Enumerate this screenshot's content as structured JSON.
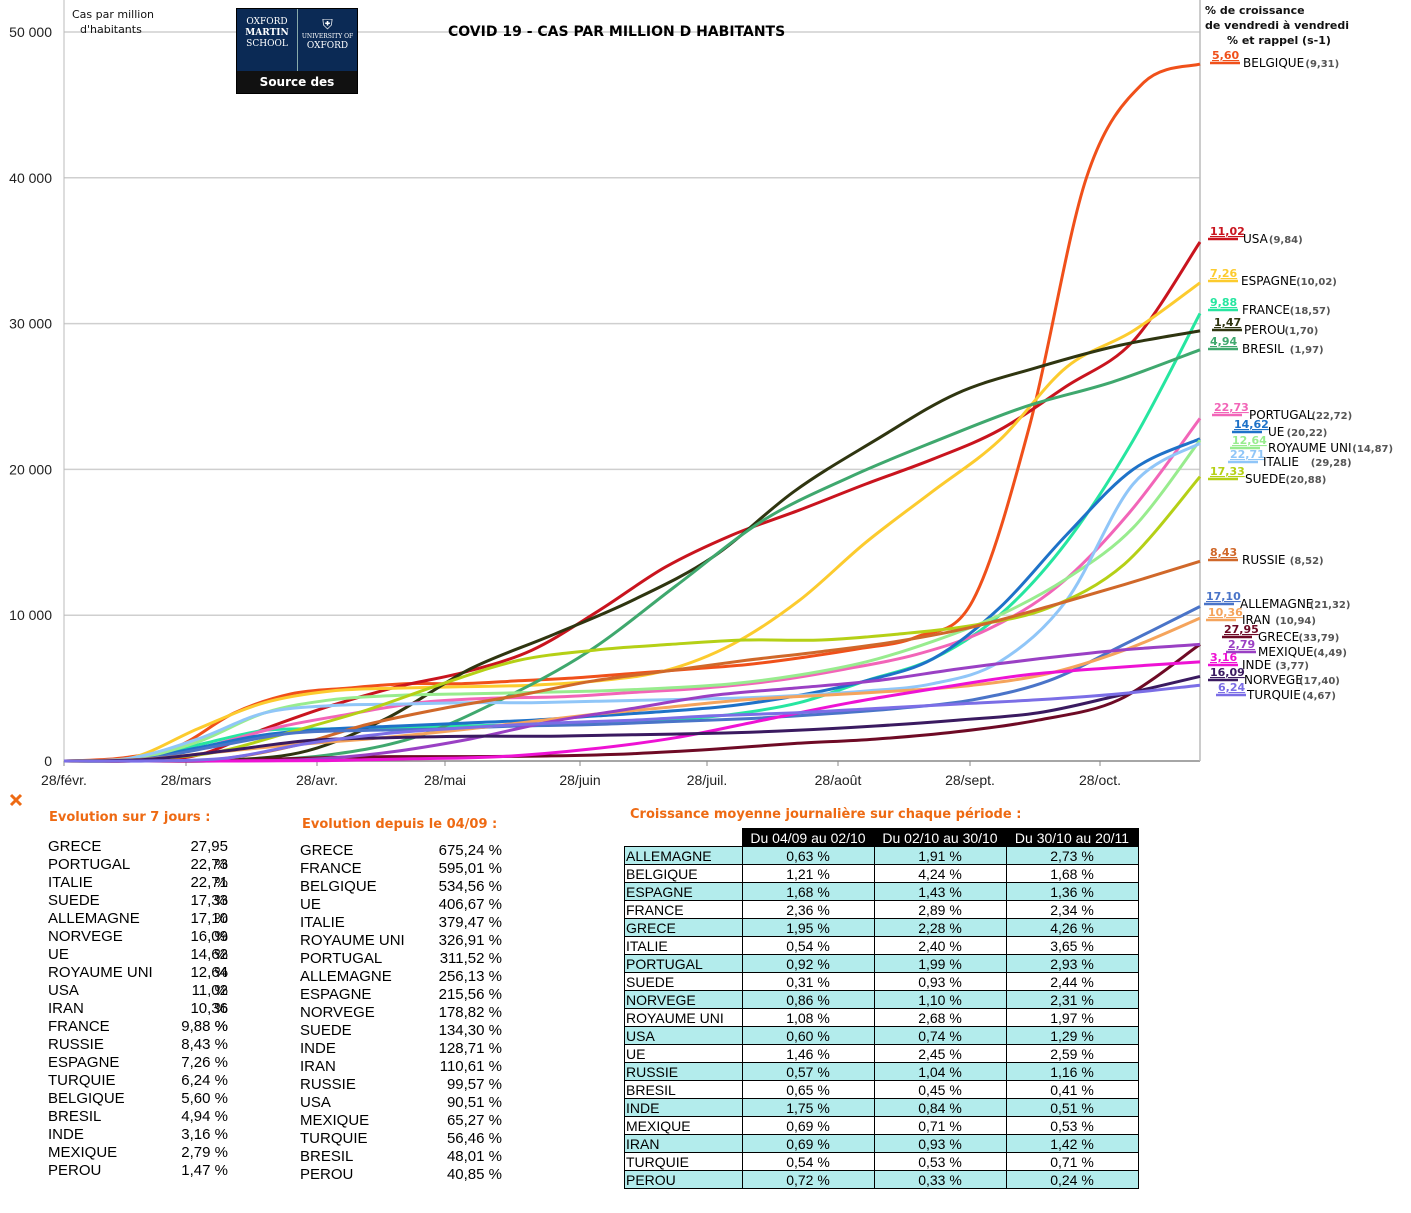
{
  "chart_data": {
    "type": "line",
    "title": "COVID 19 - CAS PAR MILLION D HABITANTS",
    "ylabel": "Cas par million d'habitants",
    "ylim": [
      0,
      50000
    ],
    "yticks": [
      "0",
      "10 000",
      "20 000",
      "30 000",
      "40 000",
      "50 000"
    ],
    "xticks": [
      "28/févr.",
      "28/mars",
      "28/avr.",
      "28/mai",
      "28/juin",
      "28/juil.",
      "28/août",
      "28/sept.",
      "28/oct."
    ],
    "legend_header": [
      "% de croissance",
      "de vendredi à vendredi",
      "% et rappel (s-1)"
    ],
    "series": [
      {
        "name": "BELGIQUE",
        "growth": "5,60",
        "prev": "(9,31)",
        "color": "#f0501a",
        "values": [
          0,
          200,
          1000,
          3300,
          4600,
          5000,
          5300,
          5300,
          5500,
          5700,
          6000,
          6300,
          6600,
          7100,
          7700,
          8500,
          11000,
          23000,
          40000,
          46500,
          47800
        ]
      },
      {
        "name": "USA",
        "growth": "11,02",
        "prev": "(9,84)",
        "color": "#c9141e",
        "values": [
          0,
          0,
          400,
          2200,
          3800,
          5100,
          6100,
          7600,
          10300,
          13300,
          15500,
          17200,
          19000,
          20700,
          22700,
          25700,
          28800,
          35600
        ]
      },
      {
        "name": "ESPAGNE",
        "growth": "7,26",
        "prev": "(10,02)",
        "color": "#fccb2e",
        "values": [
          0,
          200,
          2200,
          4000,
          4800,
          5000,
          5100,
          5200,
          5500,
          6200,
          8000,
          11000,
          15000,
          18500,
          22000,
          27000,
          29500,
          32800
        ]
      },
      {
        "name": "FRANCE",
        "growth": "9,88",
        "prev": "(18,57)",
        "color": "#26e6a0",
        "values": [
          0,
          150,
          1100,
          2100,
          2200,
          2300,
          2400,
          2500,
          2600,
          2800,
          3200,
          4000,
          5500,
          7000,
          10000,
          15000,
          22000,
          30700
        ]
      },
      {
        "name": "PEROU",
        "growth": "1,47",
        "prev": "(1,70)",
        "color": "#2f3510",
        "values": [
          0,
          0,
          50,
          700,
          3000,
          6300,
          8600,
          11000,
          14000,
          18500,
          22000,
          25200,
          27000,
          28500,
          29500
        ]
      },
      {
        "name": "BRESIL",
        "growth": "4,94",
        "prev": "(1,97)",
        "color": "#3fa86e",
        "values": [
          0,
          0,
          30,
          400,
          1600,
          4200,
          7500,
          12000,
          16500,
          19500,
          22000,
          24300,
          26000,
          28200
        ]
      },
      {
        "name": "PORTUGAL",
        "growth": "22,73",
        "prev": "(22,72)",
        "color": "#f265b8",
        "values": [
          0,
          100,
          1000,
          2300,
          3200,
          4000,
          4300,
          4400,
          4700,
          5000,
          5500,
          6300,
          7300,
          9000,
          12000,
          17000,
          23500
        ]
      },
      {
        "name": "UE",
        "growth": "14,62",
        "prev": "(20,22)",
        "color": "#1e72c8",
        "values": [
          0,
          100,
          900,
          1800,
          2200,
          2400,
          2600,
          2800,
          3100,
          3400,
          3800,
          4500,
          5500,
          7000,
          10500,
          15500,
          20000,
          22100
        ]
      },
      {
        "name": "ROYAUME UNI",
        "growth": "12,64",
        "prev": "(14,87)",
        "color": "#98ec8e",
        "values": [
          0,
          100,
          1300,
          3300,
          4200,
          4500,
          4600,
          4700,
          4800,
          5000,
          5300,
          5900,
          6800,
          8200,
          10000,
          12500,
          16000,
          22000
        ]
      },
      {
        "name": "ITALIE",
        "growth": "22,71",
        "prev": "(29,28)",
        "color": "#90c6f8",
        "values": [
          0,
          200,
          1500,
          3300,
          3800,
          3900,
          4000,
          4000,
          4100,
          4200,
          4300,
          4500,
          4800,
          5300,
          6800,
          11000,
          19000,
          21800
        ]
      },
      {
        "name": "SUEDE",
        "growth": "17,33",
        "prev": "(20,88)",
        "color": "#b5d016",
        "values": [
          0,
          100,
          600,
          2000,
          3500,
          5300,
          6900,
          7600,
          8000,
          8300,
          8300,
          8700,
          9300,
          10500,
          13500,
          19500
        ]
      },
      {
        "name": "RUSSIE",
        "growth": "8,43",
        "prev": "(8,52)",
        "color": "#d0682a",
        "values": [
          0,
          0,
          100,
          1000,
          2500,
          3600,
          4500,
          5500,
          6200,
          6900,
          7500,
          8200,
          9200,
          10600,
          12100,
          13700
        ]
      },
      {
        "name": "ALLEMAGNE",
        "growth": "17,10",
        "prev": "(21,32)",
        "color": "#4a74c8",
        "values": [
          0,
          100,
          1000,
          1900,
          2100,
          2200,
          2400,
          2500,
          2700,
          2900,
          3200,
          3600,
          4200,
          5500,
          8000,
          10600
        ]
      },
      {
        "name": "IRAN",
        "growth": "10,36",
        "prev": "(10,94)",
        "color": "#f5a45c",
        "values": [
          0,
          100,
          600,
          1100,
          1500,
          2000,
          2600,
          3200,
          3700,
          4200,
          4500,
          4800,
          5200,
          6000,
          7600,
          9800
        ]
      },
      {
        "name": "GRECE",
        "growth": "27,95",
        "prev": "(33,79)",
        "color": "#6e0a25",
        "values": [
          0,
          0,
          20,
          200,
          300,
          300,
          350,
          500,
          800,
          1200,
          1500,
          2000,
          2800,
          4200,
          8000
        ]
      },
      {
        "name": "MEXIQUE",
        "growth": "2,79",
        "prev": "(4,49)",
        "color": "#9a40c4",
        "values": [
          0,
          0,
          10,
          100,
          600,
          1500,
          2700,
          3600,
          4500,
          5000,
          5500,
          6300,
          7000,
          7600,
          8000
        ]
      },
      {
        "name": "INDE",
        "growth": "3,16",
        "prev": "(3,77)",
        "color": "#ee12d4",
        "values": [
          0,
          0,
          0,
          30,
          150,
          300,
          800,
          1600,
          2800,
          4000,
          5000,
          5900,
          6400,
          6800
        ]
      },
      {
        "name": "NORVEGE",
        "growth": "16,09",
        "prev": "(17,40)",
        "color": "#3a1a60",
        "values": [
          0,
          100,
          700,
          1400,
          1600,
          1700,
          1700,
          1800,
          1900,
          2100,
          2400,
          2800,
          3300,
          4500,
          5800
        ]
      },
      {
        "name": "TURQUIE",
        "growth": "6,24",
        "prev": "(4,67)",
        "color": "#7b6ee6",
        "values": [
          0,
          0,
          200,
          1200,
          1900,
          2300,
          2600,
          2800,
          3100,
          3300,
          3600,
          3900,
          4200,
          4600,
          5200
        ]
      }
    ]
  },
  "logo": {
    "line1": "OXFORD",
    "line2": "MARTIN",
    "line3": "SCHOOL",
    "line4": "UNIVERSITY OF",
    "line5": "OXFORD",
    "caption": "Source des données"
  },
  "sections": {
    "weekly_title": "Evolution sur 7 jours :",
    "since_title": "Evolution depuis le 04/09 :",
    "daily_title": "Croissance moyenne journalière sur chaque période :"
  },
  "weekly": [
    {
      "name": "GRECE",
      "value": "27,95 %"
    },
    {
      "name": "PORTUGAL",
      "value": "22,73 %"
    },
    {
      "name": "ITALIE",
      "value": "22,71 %"
    },
    {
      "name": "SUEDE",
      "value": "17,33 %"
    },
    {
      "name": "ALLEMAGNE",
      "value": "17,10 %"
    },
    {
      "name": "NORVEGE",
      "value": "16,09 %"
    },
    {
      "name": "UE",
      "value": "14,62 %"
    },
    {
      "name": "ROYAUME UNI",
      "value": "12,64 %"
    },
    {
      "name": "USA",
      "value": "11,02 %"
    },
    {
      "name": "IRAN",
      "value": "10,36 %"
    },
    {
      "name": "FRANCE",
      "value": "9,88 %"
    },
    {
      "name": "RUSSIE",
      "value": "8,43 %"
    },
    {
      "name": "ESPAGNE",
      "value": "7,26 %"
    },
    {
      "name": "TURQUIE",
      "value": "6,24 %"
    },
    {
      "name": "BELGIQUE",
      "value": "5,60 %"
    },
    {
      "name": "BRESIL",
      "value": "4,94 %"
    },
    {
      "name": "INDE",
      "value": "3,16 %"
    },
    {
      "name": "MEXIQUE",
      "value": "2,79 %"
    },
    {
      "name": "PEROU",
      "value": "1,47 %"
    }
  ],
  "since": [
    {
      "name": "GRECE",
      "value": "675,24 %"
    },
    {
      "name": "FRANCE",
      "value": "595,01 %"
    },
    {
      "name": "BELGIQUE",
      "value": "534,56 %"
    },
    {
      "name": "UE",
      "value": "406,67 %"
    },
    {
      "name": "ITALIE",
      "value": "379,47 %"
    },
    {
      "name": "ROYAUME UNI",
      "value": "326,91 %"
    },
    {
      "name": "PORTUGAL",
      "value": "311,52 %"
    },
    {
      "name": "ALLEMAGNE",
      "value": "256,13 %"
    },
    {
      "name": "ESPAGNE",
      "value": "215,56 %"
    },
    {
      "name": "NORVEGE",
      "value": "178,82 %"
    },
    {
      "name": "SUEDE",
      "value": "134,30 %"
    },
    {
      "name": "INDE",
      "value": "128,71 %"
    },
    {
      "name": "IRAN",
      "value": "110,61 %"
    },
    {
      "name": "RUSSIE",
      "value": "99,57 %"
    },
    {
      "name": "USA",
      "value": "90,51 %"
    },
    {
      "name": "MEXIQUE",
      "value": "65,27 %"
    },
    {
      "name": "TURQUIE",
      "value": "56,46 %"
    },
    {
      "name": "BRESIL",
      "value": "48,01 %"
    },
    {
      "name": "PEROU",
      "value": "40,85 %"
    }
  ],
  "daily": {
    "headers": [
      "Du 04/09 au 02/10",
      "Du 02/10 au 30/10",
      "Du 30/10 au 20/11"
    ],
    "rows": [
      {
        "name": "ALLEMAGNE",
        "v": [
          "0,63 %",
          "1,91 %",
          "2,73 %"
        ]
      },
      {
        "name": "BELGIQUE",
        "v": [
          "1,21 %",
          "4,24 %",
          "1,68 %"
        ]
      },
      {
        "name": "ESPAGNE",
        "v": [
          "1,68 %",
          "1,43 %",
          "1,36 %"
        ]
      },
      {
        "name": "FRANCE",
        "v": [
          "2,36 %",
          "2,89 %",
          "2,34 %"
        ]
      },
      {
        "name": "GRECE",
        "v": [
          "1,95 %",
          "2,28 %",
          "4,26 %"
        ]
      },
      {
        "name": "ITALIE",
        "v": [
          "0,54 %",
          "2,40 %",
          "3,65 %"
        ]
      },
      {
        "name": "PORTUGAL",
        "v": [
          "0,92 %",
          "1,99 %",
          "2,93 %"
        ]
      },
      {
        "name": "SUEDE",
        "v": [
          "0,31 %",
          "0,93 %",
          "2,44 %"
        ]
      },
      {
        "name": "NORVEGE",
        "v": [
          "0,86 %",
          "1,10 %",
          "2,31 %"
        ]
      },
      {
        "name": "ROYAUME UNI",
        "v": [
          "1,08 %",
          "2,68 %",
          "1,97 %"
        ]
      },
      {
        "name": "USA",
        "v": [
          "0,60 %",
          "0,74 %",
          "1,29 %"
        ]
      },
      {
        "name": "UE",
        "v": [
          "1,46 %",
          "2,45 %",
          "2,59 %"
        ]
      },
      {
        "name": "RUSSIE",
        "v": [
          "0,57 %",
          "1,04 %",
          "1,16 %"
        ]
      },
      {
        "name": "BRESIL",
        "v": [
          "0,65 %",
          "0,45 %",
          "0,41 %"
        ]
      },
      {
        "name": "INDE",
        "v": [
          "1,75 %",
          "0,84 %",
          "0,51 %"
        ]
      },
      {
        "name": "MEXIQUE",
        "v": [
          "0,69 %",
          "0,71 %",
          "0,53 %"
        ]
      },
      {
        "name": "IRAN",
        "v": [
          "0,69 %",
          "0,93 %",
          "1,42 %"
        ]
      },
      {
        "name": "TURQUIE",
        "v": [
          "0,54 %",
          "0,53 %",
          "0,71 %"
        ]
      },
      {
        "name": "PEROU",
        "v": [
          "0,72 %",
          "0,33 %",
          "0,24 %"
        ]
      }
    ]
  }
}
